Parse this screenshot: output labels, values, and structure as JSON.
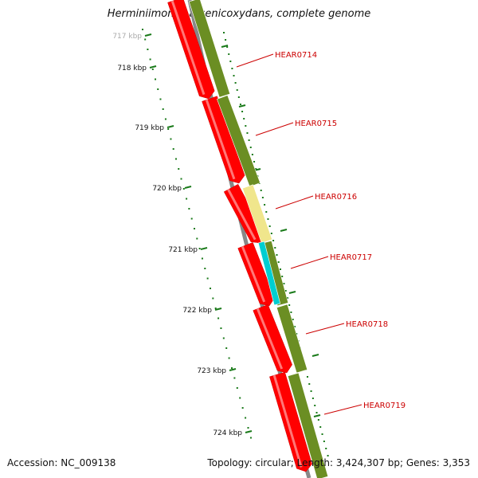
{
  "title": "Herminiimonas arsenicoxydans, complete genome",
  "footer": {
    "accession": "Accession: NC_009138",
    "summary": "Topology: circular; Length: 3,424,307 bp; Genes: 3,353"
  },
  "colors": {
    "backbone": "#888888",
    "forward_cds": "#ff0000",
    "reverse_cds": "#6b8e23",
    "pale_feature": "#f0e68c",
    "cyan_feature": "#00ced1",
    "gene_label": "#cc0000",
    "ruler": "#1a7a1a"
  },
  "ruler": {
    "labels": [
      "717 kbp",
      "718 kbp",
      "719 kbp",
      "720 kbp",
      "721 kbp",
      "722 kbp",
      "723 kbp",
      "724 kbp"
    ]
  },
  "genes": [
    {
      "label": "HEAR0714"
    },
    {
      "label": "HEAR0715"
    },
    {
      "label": "HEAR0716"
    },
    {
      "label": "HEAR0717"
    },
    {
      "label": "HEAR0718"
    },
    {
      "label": "HEAR0719"
    }
  ]
}
